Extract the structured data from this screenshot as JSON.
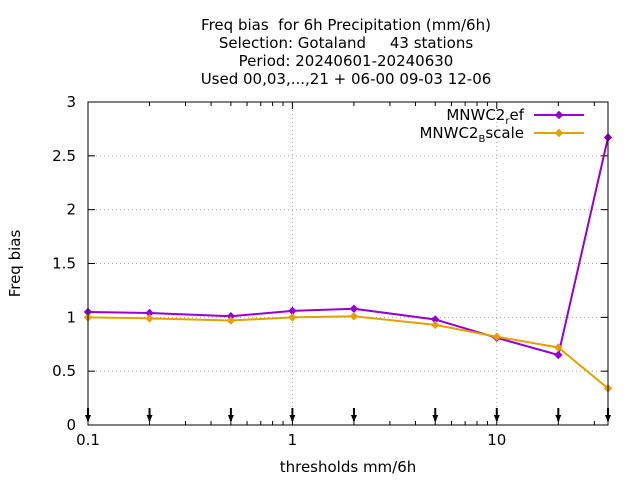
{
  "chart_data": {
    "type": "line",
    "title_lines": [
      "Freq bias  for 6h Precipitation (mm/6h)",
      "Selection: Gotaland     43 stations",
      "Period: 20240601-20240630",
      "Used 00,03,...,21 + 06-00 09-03 12-06"
    ],
    "xlabel": "thresholds mm/6h",
    "ylabel": "Freq bias",
    "xscale": "log",
    "xlim": [
      0.1,
      35
    ],
    "ylim": [
      0,
      3
    ],
    "x_ticks": [
      {
        "value": 0.1,
        "label": "0.1"
      },
      {
        "value": 1,
        "label": "1"
      },
      {
        "value": 10,
        "label": "10"
      }
    ],
    "y_ticks": [
      {
        "value": 0,
        "label": "0"
      },
      {
        "value": 0.5,
        "label": "0.5"
      },
      {
        "value": 1,
        "label": "1"
      },
      {
        "value": 1.5,
        "label": "1.5"
      },
      {
        "value": 2,
        "label": "2"
      },
      {
        "value": 2.5,
        "label": "2.5"
      },
      {
        "value": 3,
        "label": "3"
      }
    ],
    "grid": true,
    "legend_position": "top-right",
    "x": [
      0.1,
      0.2,
      0.5,
      1,
      2,
      5,
      10,
      20,
      35
    ],
    "series": [
      {
        "name": "MNWC2_ref",
        "name_main": "MNWC2",
        "name_sub": "r",
        "name_rest": "ef",
        "color": "#9400d3",
        "values": [
          1.05,
          1.04,
          1.01,
          1.06,
          1.08,
          0.98,
          0.81,
          0.65,
          2.67
        ]
      },
      {
        "name": "MNWC2_Bscale",
        "name_main": "MNWC2",
        "name_sub": "B",
        "name_rest": "scale",
        "color": "#e69f00",
        "values": [
          1.0,
          0.99,
          0.97,
          1.0,
          1.01,
          0.93,
          0.82,
          0.72,
          0.34
        ]
      }
    ]
  }
}
